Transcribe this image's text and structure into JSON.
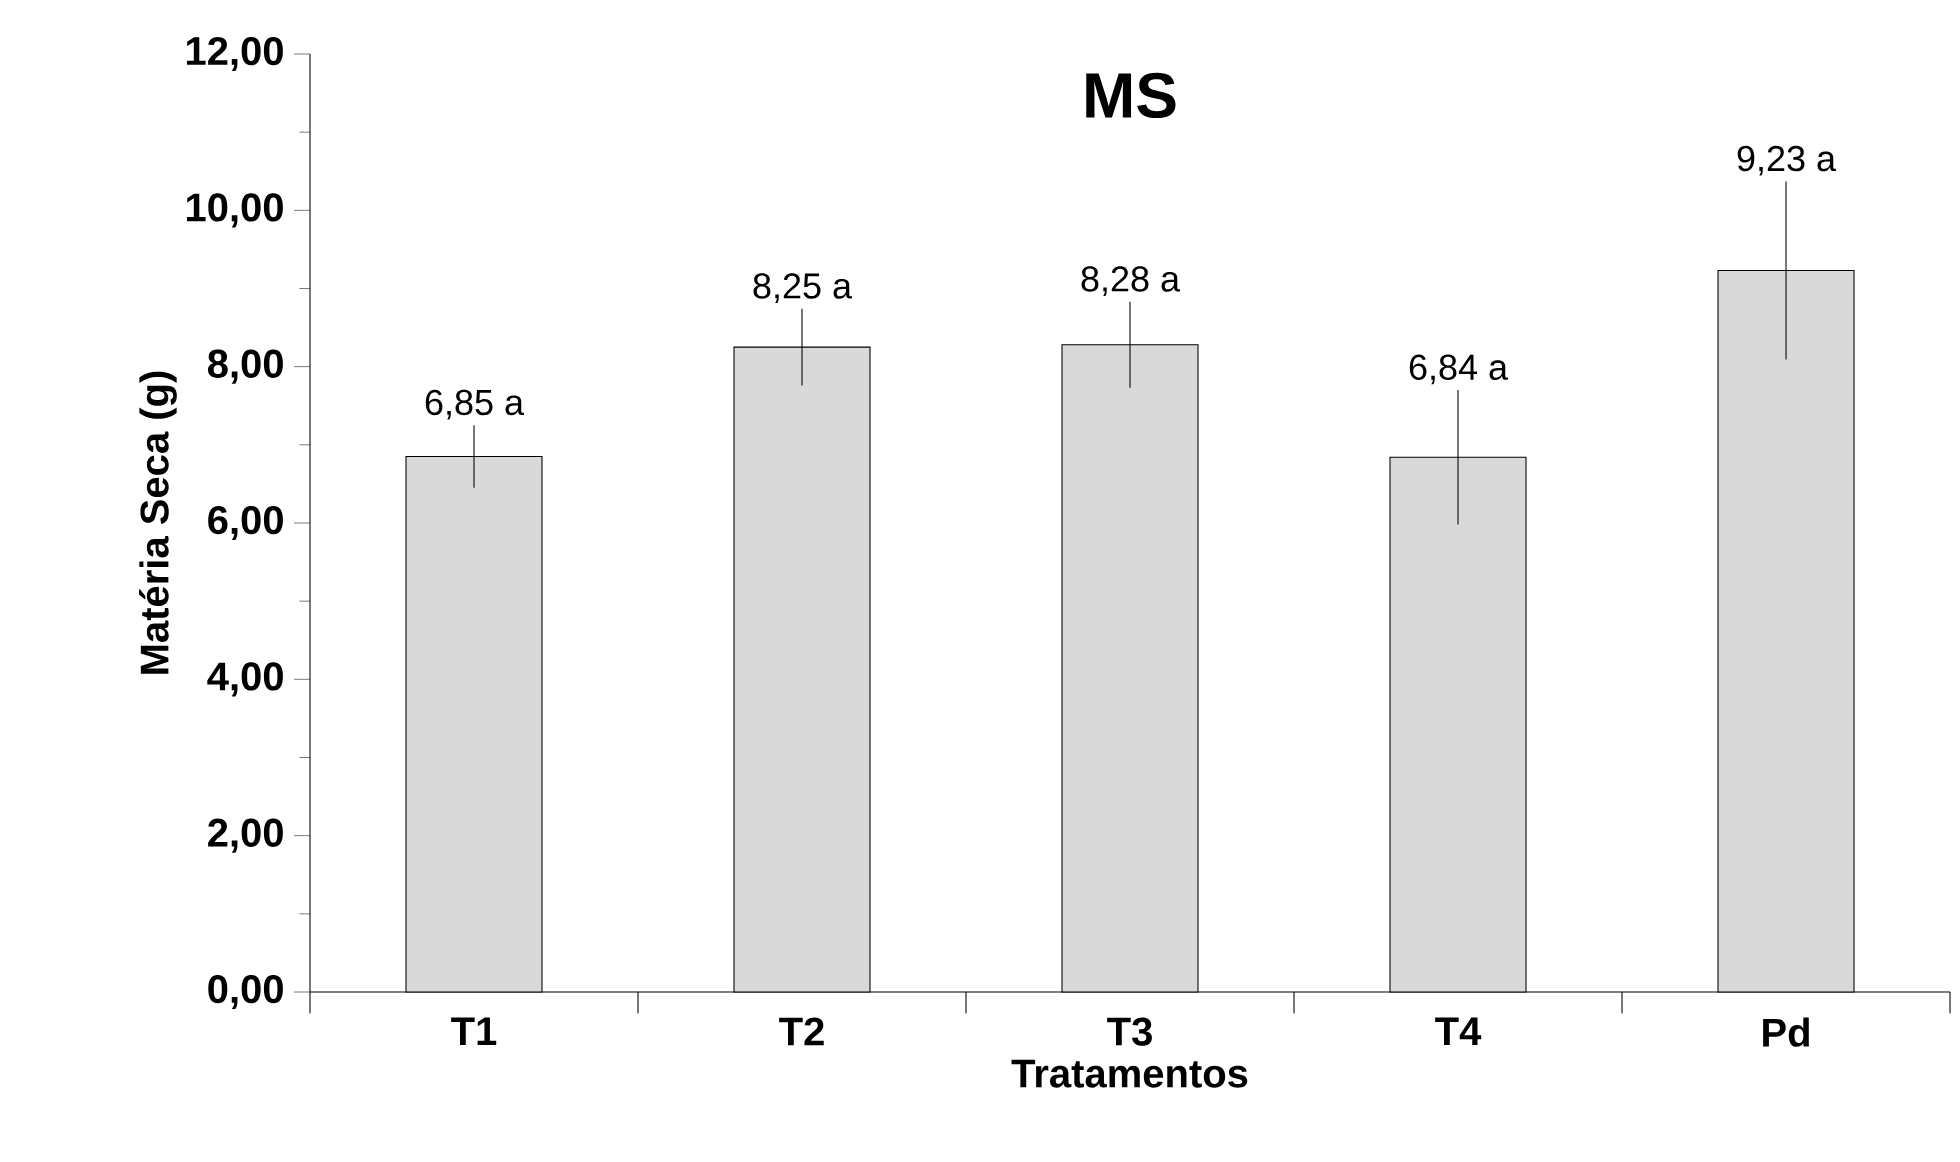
{
  "chart_data": {
    "type": "bar",
    "title": "MS",
    "xlabel": "Tratamentos",
    "ylabel": "Matéria Seca (g)",
    "categories": [
      "T1",
      "T2",
      "T3",
      "T4",
      "Pd"
    ],
    "values": [
      6.85,
      8.25,
      8.28,
      6.84,
      9.23
    ],
    "errors": [
      0.4,
      0.49,
      0.55,
      0.86,
      1.14
    ],
    "value_labels": [
      "6,85 a",
      "8,25 a",
      "8,28 a",
      "6,84 a",
      "9,23 a"
    ],
    "color": "#d9d9d9",
    "ylim": [
      0,
      12
    ],
    "yticks": [
      {
        "value": 0,
        "label": "0,00"
      },
      {
        "value": 1,
        "label": null
      },
      {
        "value": 2,
        "label": "2,00"
      },
      {
        "value": 3,
        "label": null
      },
      {
        "value": 4,
        "label": "4,00"
      },
      {
        "value": 5,
        "label": null
      },
      {
        "value": 6,
        "label": "6,00"
      },
      {
        "value": 7,
        "label": null
      },
      {
        "value": 8,
        "label": "8,00"
      },
      {
        "value": 9,
        "label": null
      },
      {
        "value": 10,
        "label": "10,00"
      },
      {
        "value": 11,
        "label": null
      },
      {
        "value": 12,
        "label": "12,00"
      }
    ]
  }
}
